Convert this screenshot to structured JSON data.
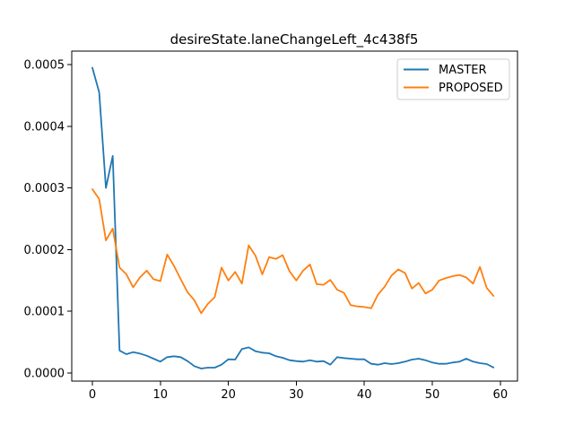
{
  "figure": {
    "title": "desireState.laneChangeLeft_4c438f5"
  },
  "chart_data": {
    "type": "line",
    "title": "desireState.laneChangeLeft_4c438f5",
    "xlabel": "",
    "ylabel": "",
    "grid": false,
    "legend_position": "upper right",
    "xlim": [
      -3.03,
      62.53
    ],
    "ylim": [
      -1.31e-05,
      0.0005219
    ],
    "x_ticks": {
      "values": [
        0,
        10,
        20,
        30,
        40,
        50,
        60
      ],
      "labels": [
        "0",
        "10",
        "20",
        "30",
        "40",
        "50",
        "60"
      ]
    },
    "y_ticks": {
      "values": [
        0.0,
        0.0001,
        0.0002,
        0.0003,
        0.0004,
        0.0005
      ],
      "labels": [
        "0.0000",
        "0.0001",
        "0.0002",
        "0.0003",
        "0.0004",
        "0.0005"
      ]
    },
    "x": [
      0,
      1,
      2,
      3,
      4,
      5,
      6,
      7,
      8,
      9,
      10,
      11,
      12,
      13,
      14,
      15,
      16,
      17,
      18,
      19,
      20,
      21,
      22,
      23,
      24,
      25,
      26,
      27,
      28,
      29,
      30,
      31,
      32,
      33,
      34,
      35,
      36,
      37,
      38,
      39,
      40,
      41,
      42,
      43,
      44,
      45,
      46,
      47,
      48,
      49,
      50,
      51,
      52,
      53,
      54,
      55,
      56,
      57,
      58,
      59
    ],
    "series": [
      {
        "name": "MASTER",
        "color": "#1f77b4",
        "values": [
          0.000495,
          0.000455,
          0.0003,
          0.000352,
          3.65e-05,
          3.05e-05,
          3.39e-05,
          3.15e-05,
          2.81e-05,
          2.33e-05,
          1.85e-05,
          2.57e-05,
          2.72e-05,
          2.57e-05,
          1.93e-05,
          1.12e-05,
          7.3e-06,
          8.7e-06,
          8.7e-06,
          1.35e-05,
          2.22e-05,
          2.18e-05,
          3.9e-05,
          4.15e-05,
          3.53e-05,
          3.3e-05,
          3.2e-05,
          2.72e-05,
          2.47e-05,
          2.08e-05,
          1.93e-05,
          1.85e-05,
          2.08e-05,
          1.85e-05,
          1.93e-05,
          1.35e-05,
          2.57e-05,
          2.43e-05,
          2.33e-05,
          2.22e-05,
          2.22e-05,
          1.5e-05,
          1.35e-05,
          1.6e-05,
          1.45e-05,
          1.6e-05,
          1.85e-05,
          2.18e-05,
          2.33e-05,
          2.08e-05,
          1.7e-05,
          1.5e-05,
          1.5e-05,
          1.7e-05,
          1.85e-05,
          2.33e-05,
          1.85e-05,
          1.6e-05,
          1.45e-05,
          9e-06
        ]
      },
      {
        "name": "PROPOSED",
        "color": "#ff7f0e",
        "values": [
          0.000298,
          0.000282,
          0.000215,
          0.000234,
          0.000171,
          0.00016,
          0.000139,
          0.000155,
          0.000166,
          0.000152,
          0.000149,
          0.000192,
          0.000174,
          0.000152,
          0.000131,
          0.000118,
          9.7e-05,
          0.000112,
          0.000123,
          0.000171,
          0.00015,
          0.000164,
          0.000145,
          0.000207,
          0.00019,
          0.00016,
          0.000188,
          0.000185,
          0.000191,
          0.000165,
          0.00015,
          0.000166,
          0.000176,
          0.000144,
          0.000143,
          0.000151,
          0.000135,
          0.00013,
          0.00011,
          0.000108,
          0.000107,
          0.000105,
          0.000127,
          0.00014,
          0.000158,
          0.000168,
          0.000162,
          0.000137,
          0.000146,
          0.000129,
          0.000135,
          0.00015,
          0.000154,
          0.000157,
          0.000159,
          0.000155,
          0.000145,
          0.000172,
          0.000138,
          0.000125
        ]
      }
    ]
  }
}
